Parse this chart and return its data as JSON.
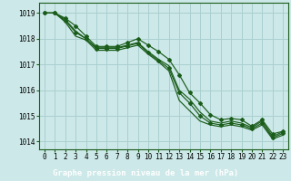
{
  "title": "Graphe pression niveau de la mer (hPa)",
  "bg_color": "#cce8e8",
  "plot_bg_color": "#cce8e8",
  "label_bar_color": "#2d6b2d",
  "grid_color": "#aacfcf",
  "line_color": "#1a5c1a",
  "xlim": [
    -0.5,
    23.5
  ],
  "ylim": [
    1013.7,
    1019.4
  ],
  "yticks": [
    1014,
    1015,
    1016,
    1017,
    1018,
    1019
  ],
  "xticks": [
    0,
    1,
    2,
    3,
    4,
    5,
    6,
    7,
    8,
    9,
    10,
    11,
    12,
    13,
    14,
    15,
    16,
    17,
    18,
    19,
    20,
    21,
    22,
    23
  ],
  "xlabel_tick_labels": [
    "0",
    "1",
    "2",
    "3",
    "4",
    "5",
    "6",
    "7",
    "8",
    "9",
    "10",
    "11",
    "12",
    "13",
    "14",
    "15",
    "16",
    "17",
    "18",
    "19",
    "20",
    "21",
    "22",
    "23"
  ],
  "title_fontsize": 6.5,
  "tick_fontsize": 5.5,
  "series": [
    [
      1019.0,
      1019.0,
      1018.8,
      1018.5,
      1018.1,
      1017.7,
      1017.7,
      1017.7,
      1017.85,
      1018.0,
      1017.75,
      1017.5,
      1017.2,
      1016.6,
      1015.9,
      1015.5,
      1015.05,
      1014.85,
      1014.9,
      1014.85,
      1014.6,
      1014.85,
      1014.3,
      1014.4
    ],
    [
      1019.0,
      1019.0,
      1018.75,
      1018.3,
      1018.0,
      1017.65,
      1017.65,
      1017.65,
      1017.75,
      1017.85,
      1017.5,
      1017.2,
      1016.95,
      1016.0,
      1015.65,
      1015.15,
      1014.8,
      1014.72,
      1014.8,
      1014.72,
      1014.55,
      1014.8,
      1014.2,
      1014.38
    ],
    [
      1019.0,
      1019.0,
      1018.7,
      1018.25,
      1018.0,
      1017.62,
      1017.62,
      1017.62,
      1017.72,
      1017.82,
      1017.45,
      1017.15,
      1016.85,
      1015.9,
      1015.5,
      1015.0,
      1014.72,
      1014.65,
      1014.72,
      1014.65,
      1014.5,
      1014.72,
      1014.15,
      1014.32
    ],
    [
      1019.0,
      1019.0,
      1018.65,
      1018.1,
      1017.95,
      1017.55,
      1017.55,
      1017.55,
      1017.65,
      1017.75,
      1017.4,
      1017.1,
      1016.75,
      1015.6,
      1015.2,
      1014.8,
      1014.65,
      1014.58,
      1014.65,
      1014.58,
      1014.45,
      1014.65,
      1014.1,
      1014.25
    ]
  ],
  "markers": [
    true,
    false,
    true,
    false
  ]
}
